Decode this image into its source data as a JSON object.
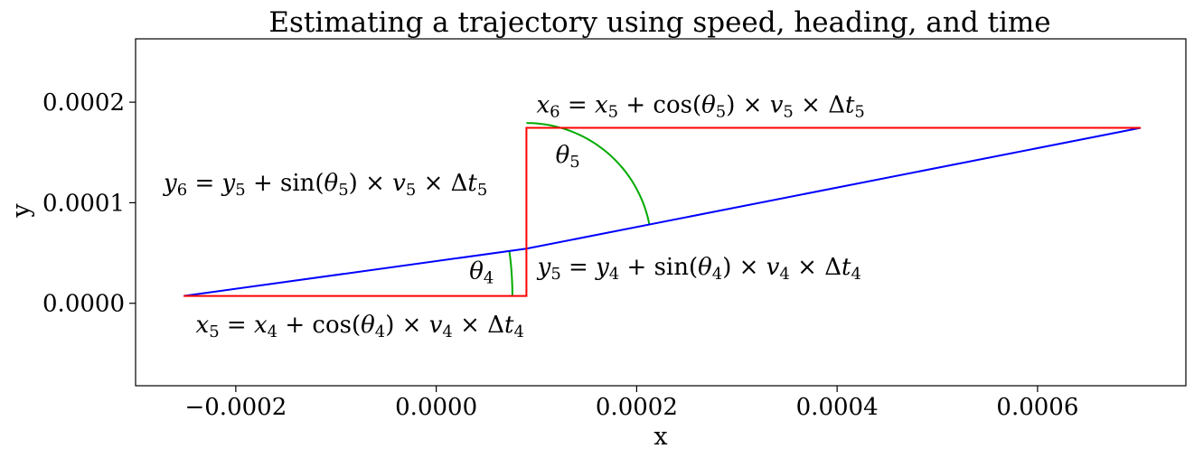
{
  "chart_data": {
    "type": "line",
    "title": "Estimating a trajectory using speed, heading, and time",
    "xlabel": "x",
    "ylabel": "y",
    "xlim": [
      -0.0003,
      0.000748
    ],
    "ylim": [
      -8.2e-05,
      0.000263
    ],
    "grid": false,
    "x_ticks": [
      {
        "value": -0.0002,
        "label": "−0.0002"
      },
      {
        "value": 0.0,
        "label": "0.0000"
      },
      {
        "value": 0.0002,
        "label": "0.0002"
      },
      {
        "value": 0.0004,
        "label": "0.0004"
      },
      {
        "value": 0.0006,
        "label": "0.0006"
      }
    ],
    "y_ticks": [
      {
        "value": 0.0,
        "label": "0.0000"
      },
      {
        "value": 0.0001,
        "label": "0.0001"
      },
      {
        "value": 0.0002,
        "label": "0.0002"
      }
    ],
    "series": [
      {
        "color": "#0000ff",
        "x": [
          -0.000252,
          9e-05,
          0.000703
        ],
        "y": [
          7.3e-06,
          5.43e-05,
          0.0001745
        ]
      },
      {
        "color": "#ff0000",
        "x": [
          -0.000252,
          9e-05,
          9e-05,
          0.000703
        ],
        "y": [
          7.3e-06,
          7.3e-06,
          0.0001745,
          0.0001745
        ]
      }
    ],
    "arcs": [
      {
        "color": "#00aa00",
        "center": [
          -0.000252,
          7.3e-06
        ],
        "radius": 0.000328,
        "from_deg": 0,
        "to_deg": 7.8
      },
      {
        "color": "#00aa00",
        "center": [
          9e-05,
          5.43e-05
        ],
        "radius": 0.000125,
        "from_deg": 11.1,
        "to_deg": 90
      }
    ],
    "annotations": [
      {
        "id": "x6",
        "x": 0.0001,
        "y": 0.00019,
        "lhs_var": "x",
        "lhs_sub": "6",
        "rhs_var": "x",
        "rhs_sub": "5",
        "func": "cos",
        "theta_sub": "5",
        "v_sub": "5",
        "t_sub": "5"
      },
      {
        "id": "y6",
        "x": -0.000272,
        "y": 0.000112,
        "lhs_var": "y",
        "lhs_sub": "6",
        "rhs_var": "y",
        "rhs_sub": "5",
        "func": "sin",
        "theta_sub": "5",
        "v_sub": "5",
        "t_sub": "5"
      },
      {
        "id": "y5",
        "x": 0.000101,
        "y": 2.85e-05,
        "lhs_var": "y",
        "lhs_sub": "5",
        "rhs_var": "y",
        "rhs_sub": "4",
        "func": "sin",
        "theta_sub": "4",
        "v_sub": "4",
        "t_sub": "4"
      },
      {
        "id": "x5",
        "x": -0.00024,
        "y": -2.9e-05,
        "lhs_var": "x",
        "lhs_sub": "5",
        "rhs_var": "x",
        "rhs_sub": "4",
        "func": "cos",
        "theta_sub": "4",
        "v_sub": "4",
        "t_sub": "4"
      }
    ],
    "angle_labels": [
      {
        "id": "theta5",
        "x": 0.000119,
        "y": 0.00014,
        "sub": "5"
      },
      {
        "id": "theta4",
        "x": 3.3e-05,
        "y": 2.45e-05,
        "sub": "4"
      }
    ],
    "symbols": {
      "theta": "θ",
      "times": "×",
      "delta": "Δ",
      "v": "v",
      "t": "t",
      "eq": "=",
      "plus": "+"
    }
  }
}
